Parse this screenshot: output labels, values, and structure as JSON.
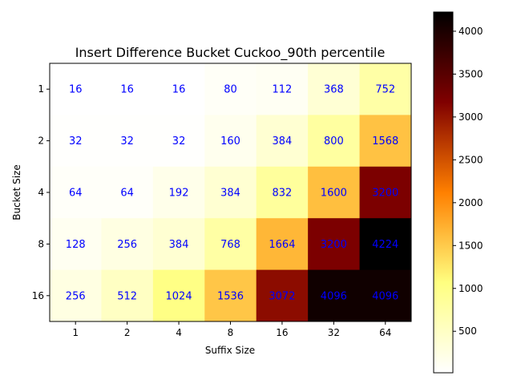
{
  "chart_data": {
    "type": "heatmap",
    "title": "Insert Difference Bucket Cuckoo_90th percentile",
    "xlabel": "Suffix Size",
    "ylabel": "Bucket Size",
    "x_categories": [
      "1",
      "2",
      "4",
      "8",
      "16",
      "32",
      "64"
    ],
    "y_categories": [
      "1",
      "2",
      "4",
      "8",
      "16"
    ],
    "values": [
      [
        16,
        16,
        16,
        80,
        112,
        368,
        752
      ],
      [
        32,
        32,
        32,
        160,
        384,
        800,
        1568
      ],
      [
        64,
        64,
        192,
        384,
        832,
        1600,
        3200
      ],
      [
        128,
        256,
        384,
        768,
        1664,
        3200,
        4224
      ],
      [
        256,
        512,
        1024,
        1536,
        3072,
        4096,
        4096
      ]
    ],
    "colormap": "afmhot_r",
    "annotation_color": "#0000ff",
    "value_range": [
      16,
      4224
    ],
    "colorbar_ticks": [
      500,
      1000,
      1500,
      2000,
      2500,
      3000,
      3500,
      4000
    ],
    "grid": false
  }
}
